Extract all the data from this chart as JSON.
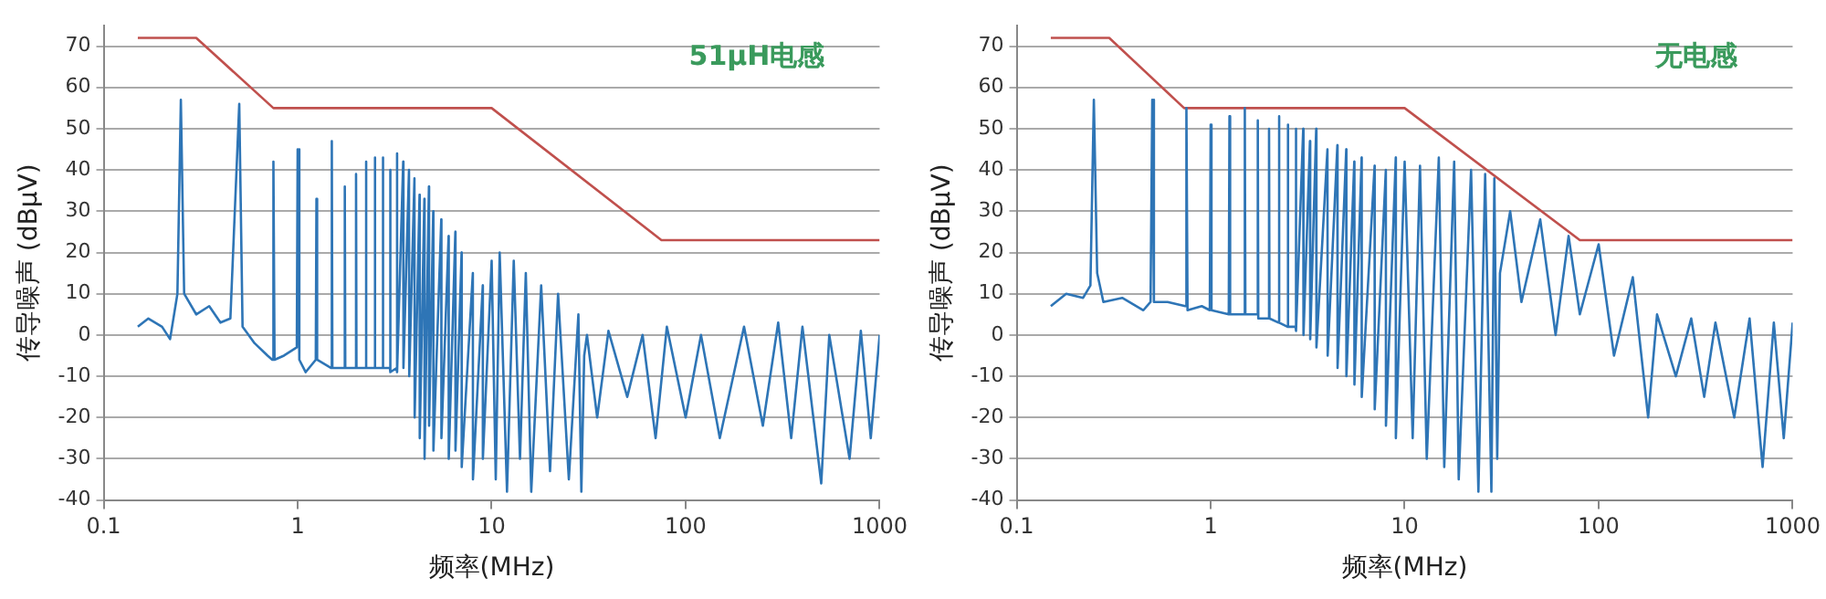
{
  "chart_data": [
    {
      "type": "line",
      "xlabel": "频率(MHz)",
      "ylabel": "传导噪声 (dBμV)",
      "annotations": [
        "51μH电感"
      ],
      "log": "x",
      "grid": "y",
      "legend": false,
      "marker": "none",
      "line_style": "solid",
      "xlim": [
        0.1,
        1000
      ],
      "xticks": [
        0.1,
        1,
        10,
        100,
        1000
      ],
      "ylim": [
        -40,
        75
      ],
      "yticks": [
        -40,
        -30,
        -20,
        -10,
        0,
        10,
        20,
        30,
        40,
        50,
        60,
        70
      ],
      "series": [
        {
          "type": "line",
          "color": "#2e75b6",
          "x": [
            0.15,
            0.17,
            0.2,
            0.22,
            0.24,
            0.25,
            0.26,
            0.3,
            0.35,
            0.4,
            0.45,
            0.5,
            0.52,
            0.6,
            0.7,
            0.74,
            0.75,
            0.76,
            0.85,
            0.99,
            1.0,
            1.02,
            1.1,
            1.24,
            1.25,
            1.26,
            1.49,
            1.5,
            1.51,
            1.74,
            1.75,
            1.76,
            1.99,
            2.0,
            2.01,
            2.24,
            2.25,
            2.26,
            2.49,
            2.5,
            2.51,
            2.74,
            2.75,
            2.76,
            2.99,
            3.0,
            3.01,
            3.24,
            3.25,
            3.26,
            3.5,
            3.51,
            3.75,
            3.76,
            4.0,
            4.01,
            4.25,
            4.26,
            4.5,
            4.51,
            4.75,
            4.76,
            5.0,
            5.01,
            5.5,
            5.51,
            6.0,
            6.01,
            6.5,
            6.51,
            7.0,
            7.01,
            8.0,
            8.01,
            9.0,
            9.01,
            10,
            10.5,
            11,
            12,
            13,
            14,
            15,
            16,
            18,
            20,
            22,
            25,
            28,
            29,
            30,
            31,
            35,
            40,
            50,
            60,
            70,
            80,
            100,
            120,
            150,
            200,
            250,
            300,
            350,
            400,
            500,
            550,
            700,
            800,
            900,
            1000
          ],
          "values": [
            2,
            4,
            2,
            -1,
            10,
            57,
            10,
            5,
            7,
            3,
            4,
            56,
            2,
            -2,
            -5,
            -6,
            42,
            -6,
            -5,
            -3,
            45,
            -6,
            -9,
            -6,
            33,
            -6,
            -8,
            47,
            -8,
            -8,
            36,
            -8,
            -8,
            39,
            -8,
            -8,
            42,
            -8,
            -8,
            43,
            -8,
            -8,
            43,
            -8,
            -8,
            40,
            -9,
            -8,
            44,
            -9,
            42,
            -8,
            40,
            -10,
            38,
            -20,
            34,
            -25,
            33,
            -30,
            36,
            -22,
            30,
            -28,
            28,
            -25,
            24,
            -30,
            25,
            -28,
            20,
            -32,
            15,
            -35,
            12,
            -30,
            18,
            -35,
            20,
            -38,
            18,
            -30,
            15,
            -38,
            12,
            -33,
            10,
            -35,
            5,
            -38,
            -5,
            0,
            -20,
            1,
            -15,
            0,
            -25,
            2,
            -20,
            0,
            -25,
            2,
            -22,
            3,
            -25,
            2,
            -36,
            0,
            -30,
            1,
            -25,
            0
          ]
        },
        {
          "type": "line",
          "color": "#c0504d",
          "x": [
            0.15,
            0.3,
            0.75,
            10,
            75,
            1000
          ],
          "values": [
            72,
            72,
            55,
            55,
            23,
            23
          ]
        }
      ]
    },
    {
      "type": "line",
      "xlabel": "频率(MHz)",
      "ylabel": "传导噪声 (dBμV)",
      "annotations": [
        "无电感"
      ],
      "log": "x",
      "grid": "y",
      "legend": false,
      "marker": "none",
      "line_style": "solid",
      "xlim": [
        0.1,
        1000
      ],
      "xticks": [
        0.1,
        1,
        10,
        100,
        1000
      ],
      "ylim": [
        -40,
        75
      ],
      "yticks": [
        -40,
        -30,
        -20,
        -10,
        0,
        10,
        20,
        30,
        40,
        50,
        60,
        70
      ],
      "series": [
        {
          "type": "line",
          "color": "#2e75b6",
          "x": [
            0.15,
            0.18,
            0.22,
            0.24,
            0.25,
            0.26,
            0.28,
            0.35,
            0.45,
            0.49,
            0.5,
            0.51,
            0.6,
            0.74,
            0.75,
            0.76,
            0.9,
            0.99,
            1.0,
            1.01,
            1.24,
            1.25,
            1.26,
            1.49,
            1.5,
            1.51,
            1.74,
            1.75,
            1.76,
            1.99,
            2.0,
            2.01,
            2.24,
            2.25,
            2.26,
            2.49,
            2.5,
            2.51,
            2.74,
            2.75,
            2.76,
            3.0,
            3.01,
            3.25,
            3.26,
            3.5,
            3.51,
            4.0,
            4.01,
            4.5,
            4.51,
            5.0,
            5.01,
            5.5,
            5.51,
            6.0,
            6.01,
            7.0,
            7.01,
            8.0,
            8.01,
            9.0,
            9.01,
            10,
            11,
            12,
            13,
            15,
            16,
            18,
            19,
            22,
            24,
            26,
            28,
            29,
            30,
            31,
            35,
            40,
            50,
            60,
            70,
            80,
            100,
            120,
            150,
            180,
            200,
            250,
            300,
            350,
            400,
            500,
            600,
            700,
            800,
            900,
            1000
          ],
          "values": [
            7,
            10,
            9,
            12,
            57,
            15,
            8,
            9,
            6,
            8,
            57,
            8,
            8,
            7,
            55,
            6,
            7,
            6,
            51,
            6,
            5,
            53,
            5,
            5,
            55,
            5,
            5,
            52,
            4,
            4,
            50,
            4,
            3,
            53,
            3,
            2,
            51,
            2,
            2,
            50,
            1,
            50,
            0,
            47,
            -1,
            50,
            -3,
            45,
            -5,
            46,
            -8,
            45,
            -10,
            42,
            -12,
            43,
            -15,
            41,
            -18,
            40,
            -22,
            43,
            -25,
            42,
            -25,
            41,
            -30,
            43,
            -32,
            42,
            -35,
            40,
            -38,
            39,
            -38,
            38,
            -30,
            15,
            30,
            8,
            28,
            0,
            24,
            5,
            22,
            -5,
            14,
            -20,
            5,
            -10,
            4,
            -15,
            3,
            -20,
            4,
            -32,
            3,
            -25,
            3
          ]
        },
        {
          "type": "line",
          "color": "#c0504d",
          "x": [
            0.15,
            0.3,
            0.73,
            10,
            80,
            1000
          ],
          "values": [
            72,
            72,
            55,
            55,
            23,
            23
          ]
        }
      ]
    }
  ]
}
